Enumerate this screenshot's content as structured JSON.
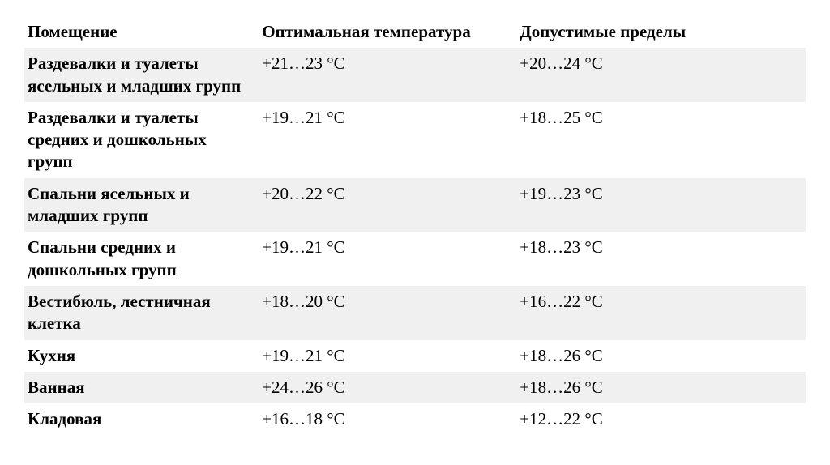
{
  "table": {
    "columns": [
      "Помещение",
      "Оптимальная температура",
      "Допустимые пределы"
    ],
    "column_widths_pct": [
      30,
      33,
      37
    ],
    "header_bg": "#ffffff",
    "row_stripe_bg": "#f0f0f0",
    "row_plain_bg": "#ffffff",
    "font_family": "Times New Roman",
    "font_size_pt": 16,
    "rows": [
      {
        "room": "Раздевалки и туалеты ясельных и младших групп",
        "optimal": "+21…23 °C",
        "allowed": "+20…24 °C",
        "striped": true
      },
      {
        "room": "Раздевалки и туалеты средних и дошкольных групп",
        "optimal": "+19…21 °C",
        "allowed": "+18…25 °C",
        "striped": false
      },
      {
        "room": "Спальни ясельных и младших групп",
        "optimal": "+20…22 °C",
        "allowed": "+19…23 °C",
        "striped": true
      },
      {
        "room": "Спальни средних и дошкольных групп",
        "optimal": "+19…21 °C",
        "allowed": "+18…23 °C",
        "striped": false
      },
      {
        "room": "Вестибюль, лестничная клетка",
        "optimal": "+18…20 °C",
        "allowed": "+16…22 °C",
        "striped": true
      },
      {
        "room": "Кухня",
        "optimal": "+19…21 °C",
        "allowed": "+18…26 °C",
        "striped": false
      },
      {
        "room": "Ванная",
        "optimal": "+24…26 °C",
        "allowed": "+18…26 °C",
        "striped": true
      },
      {
        "room": "Кладовая",
        "optimal": "+16…18 °C",
        "allowed": "+12…22 °C",
        "striped": false
      }
    ]
  }
}
